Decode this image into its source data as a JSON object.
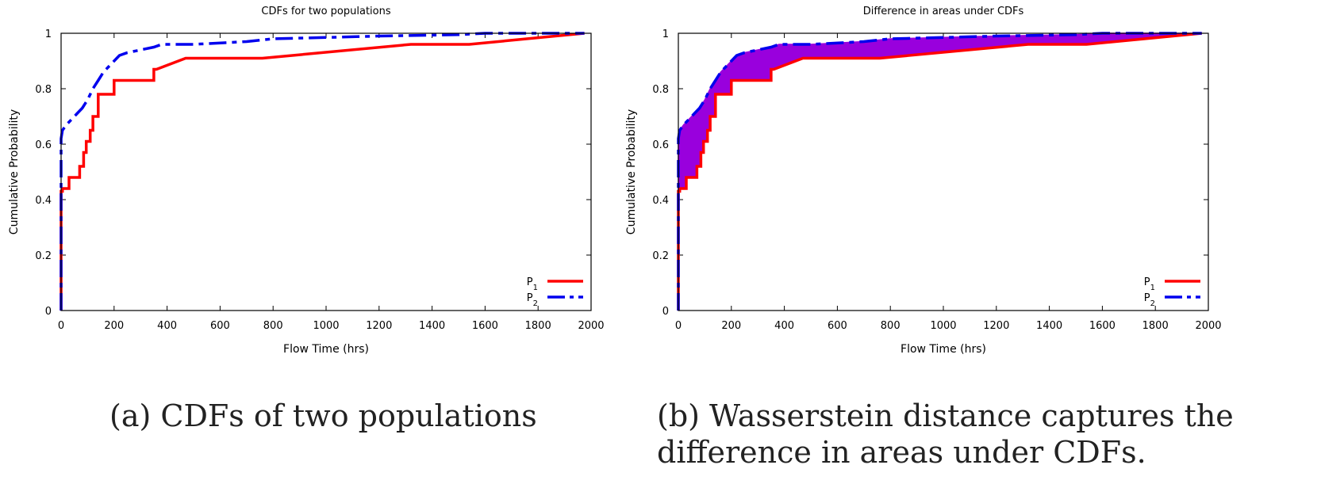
{
  "chart_data": [
    {
      "type": "line",
      "title": "CDFs for two populations",
      "xlabel": "Flow Time (hrs)",
      "ylabel": "Cumulative Probability",
      "xlim": [
        0,
        2000
      ],
      "ylim": [
        0,
        1
      ],
      "xticks": [
        "0",
        "200",
        "400",
        "600",
        "800",
        "1000",
        "1200",
        "1400",
        "1600",
        "1800",
        "2000"
      ],
      "yticks": [
        "0",
        "0.2",
        "0.4",
        "0.6",
        "0.8",
        "1"
      ],
      "legend_position": "bottom-right",
      "fill_between": false,
      "series": [
        {
          "name": "P1",
          "color": "#ff0000",
          "dash": "solid",
          "x": [
            0,
            0,
            0,
            5,
            5,
            30,
            30,
            70,
            70,
            85,
            85,
            95,
            95,
            110,
            110,
            120,
            120,
            140,
            140,
            160,
            160,
            200,
            200,
            350,
            350,
            360,
            360,
            470,
            470,
            760,
            760,
            1320,
            1320,
            1540,
            1540,
            1975
          ],
          "y": [
            0,
            0.38,
            0.43,
            0.43,
            0.44,
            0.44,
            0.48,
            0.48,
            0.52,
            0.52,
            0.57,
            0.57,
            0.61,
            0.61,
            0.65,
            0.65,
            0.7,
            0.7,
            0.78,
            0.78,
            0.78,
            0.78,
            0.83,
            0.83,
            0.87,
            0.87,
            0.87,
            0.91,
            0.91,
            0.91,
            0.91,
            0.96,
            0.96,
            0.96,
            0.96,
            1.0
          ]
        },
        {
          "name": "P2",
          "color": "#0000ee",
          "dash": "dash-dot",
          "x": [
            0,
            0,
            5,
            20,
            40,
            60,
            80,
            100,
            120,
            140,
            160,
            180,
            200,
            220,
            250,
            300,
            350,
            380,
            500,
            700,
            800,
            1000,
            1200,
            1500,
            1600,
            1975
          ],
          "y": [
            0,
            0.62,
            0.65,
            0.67,
            0.69,
            0.71,
            0.73,
            0.76,
            0.8,
            0.83,
            0.86,
            0.88,
            0.9,
            0.92,
            0.93,
            0.94,
            0.95,
            0.96,
            0.96,
            0.97,
            0.98,
            0.985,
            0.99,
            0.995,
            1.0,
            1.0
          ]
        }
      ]
    },
    {
      "type": "area",
      "title": "Difference in areas under CDFs",
      "xlabel": "Flow Time (hrs)",
      "ylabel": "Cumulative Probability",
      "xlim": [
        0,
        2000
      ],
      "ylim": [
        0,
        1
      ],
      "xticks": [
        "0",
        "200",
        "400",
        "600",
        "800",
        "1000",
        "1200",
        "1400",
        "1600",
        "1800",
        "2000"
      ],
      "yticks": [
        "0",
        "0.2",
        "0.4",
        "0.6",
        "0.8",
        "1"
      ],
      "legend_position": "bottom-right",
      "fill_between": true,
      "fill_color": "#9900dd",
      "series": [
        {
          "name": "P1",
          "color": "#ff0000",
          "dash": "solid",
          "x": [
            0,
            0,
            0,
            5,
            5,
            30,
            30,
            70,
            70,
            85,
            85,
            95,
            95,
            110,
            110,
            120,
            120,
            140,
            140,
            160,
            160,
            200,
            200,
            350,
            350,
            360,
            360,
            470,
            470,
            760,
            760,
            1320,
            1320,
            1540,
            1540,
            1975
          ],
          "y": [
            0,
            0.38,
            0.43,
            0.43,
            0.44,
            0.44,
            0.48,
            0.48,
            0.52,
            0.52,
            0.57,
            0.57,
            0.61,
            0.61,
            0.65,
            0.65,
            0.7,
            0.7,
            0.78,
            0.78,
            0.78,
            0.78,
            0.83,
            0.83,
            0.87,
            0.87,
            0.87,
            0.91,
            0.91,
            0.91,
            0.91,
            0.96,
            0.96,
            0.96,
            0.96,
            1.0
          ]
        },
        {
          "name": "P2",
          "color": "#0000ee",
          "dash": "dash-dot",
          "x": [
            0,
            0,
            5,
            20,
            40,
            60,
            80,
            100,
            120,
            140,
            160,
            180,
            200,
            220,
            250,
            300,
            350,
            380,
            500,
            700,
            800,
            1000,
            1200,
            1500,
            1600,
            1975
          ],
          "y": [
            0,
            0.62,
            0.65,
            0.67,
            0.69,
            0.71,
            0.73,
            0.76,
            0.8,
            0.83,
            0.86,
            0.88,
            0.9,
            0.92,
            0.93,
            0.94,
            0.95,
            0.96,
            0.96,
            0.97,
            0.98,
            0.985,
            0.99,
            0.995,
            1.0,
            1.0
          ]
        }
      ]
    }
  ],
  "captions": {
    "a": "(a) CDFs of two populations",
    "b": "(b) Wasserstein distance captures the difference in areas under CDFs."
  }
}
